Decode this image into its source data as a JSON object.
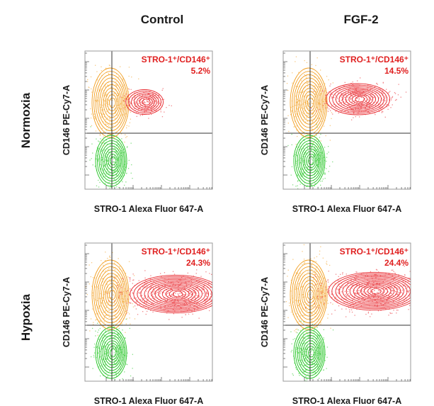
{
  "chart_data": {
    "type": "scatter",
    "columns": [
      "Control",
      "FGF-2"
    ],
    "rows": [
      "Normoxia",
      "Hypoxia"
    ],
    "xlabel": "STRO-1 Alexa Fluor 647-A",
    "ylabel": "CD146 PE-Cy7-A",
    "gate_label": "STRO-1⁺/CD146⁺",
    "colors": {
      "double_positive": "#e8242a",
      "stro1_negative_cd146_positive": "#f29d1d",
      "double_negative": "#1ec41e"
    },
    "panels": [
      {
        "row": "Normoxia",
        "column": "Control",
        "gate_percent_label": "5.2%",
        "gate_percent": 5.2
      },
      {
        "row": "Normoxia",
        "column": "FGF-2",
        "gate_percent_label": "14.5%",
        "gate_percent": 14.5
      },
      {
        "row": "Hypoxia",
        "column": "Control",
        "gate_percent_label": "24.3%",
        "gate_percent": 24.3
      },
      {
        "row": "Hypoxia",
        "column": "FGF-2",
        "gate_percent_label": "24.4%",
        "gate_percent": 24.4
      }
    ]
  }
}
